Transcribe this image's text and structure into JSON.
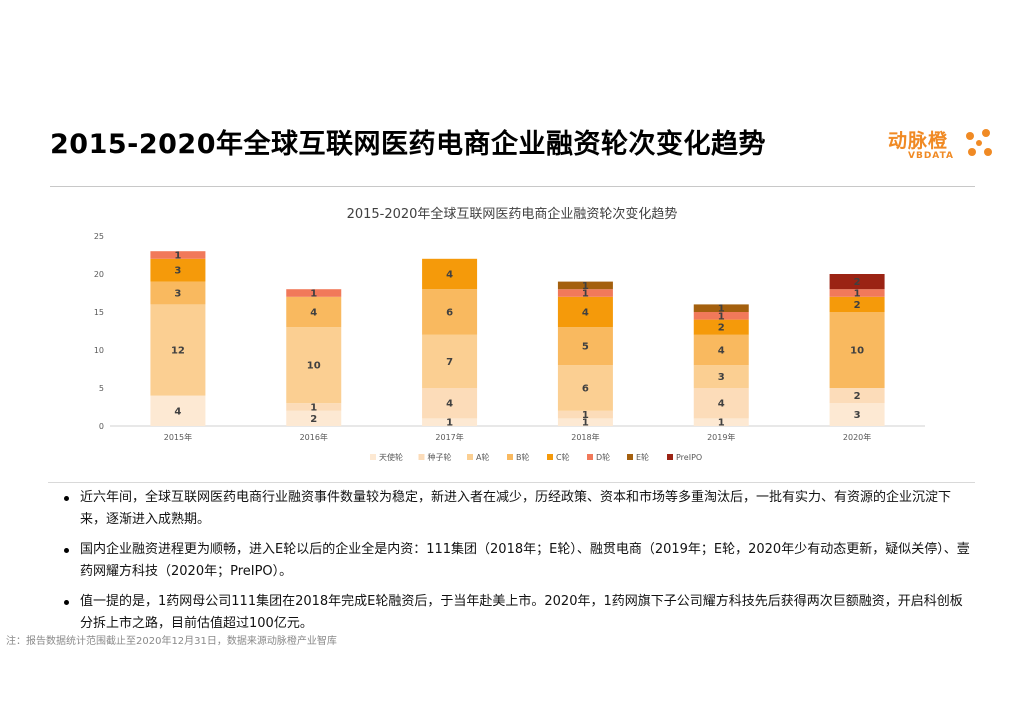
{
  "page": {
    "title": "2015-2020年全球互联网医药电商企业融资轮次变化趋势",
    "logo": {
      "name_cn": "动脉橙",
      "name_en": "VBDATA"
    },
    "bullets": [
      "近六年间，全球互联网医药电商行业融资事件数量较为稳定，新进入者在减少，历经政策、资本和市场等多重淘汰后，一批有实力、有资源的企业沉淀下来，逐渐进入成熟期。",
      "国内企业融资进程更为顺畅，进入E轮以后的企业全是内资：111集团（2018年；E轮）、融贯电商（2019年；E轮，2020年少有动态更新，疑似关停）、壹药网耀方科技（2020年；PreIPO）。",
      "值一提的是，1药网母公司111集团在2018年完成E轮融资后，于当年赴美上市。2020年，1药网旗下子公司耀方科技先后获得两次巨额融资，开启科创板分拆上市之路，目前估值超过100亿元。"
    ],
    "note": "注：报告数据统计范围截止至2020年12月31日，数据来源动脉橙产业智库"
  },
  "chart_data": {
    "type": "bar",
    "stacked": true,
    "title": "2015-2020年全球互联网医药电商企业融资轮次变化趋势",
    "categories": [
      "2015年",
      "2016年",
      "2017年",
      "2018年",
      "2019年",
      "2020年"
    ],
    "ylim": [
      0,
      25
    ],
    "yticks": [
      0,
      5,
      10,
      15,
      20,
      25
    ],
    "legend_position": "bottom",
    "series": [
      {
        "name": "天使轮",
        "color": "#fde9d3",
        "values": [
          4,
          2,
          1,
          1,
          1,
          3
        ]
      },
      {
        "name": "种子轮",
        "color": "#fcdcb9",
        "values": [
          0,
          1,
          4,
          1,
          4,
          2
        ]
      },
      {
        "name": "A轮",
        "color": "#fbcf92",
        "values": [
          12,
          10,
          7,
          6,
          3,
          0
        ]
      },
      {
        "name": "B轮",
        "color": "#f9b95f",
        "values": [
          3,
          4,
          6,
          5,
          4,
          10
        ]
      },
      {
        "name": "C轮",
        "color": "#f59a0a",
        "values": [
          3,
          0,
          4,
          4,
          2,
          2
        ]
      },
      {
        "name": "D轮",
        "color": "#f1795a",
        "values": [
          1,
          1,
          0,
          1,
          1,
          1
        ]
      },
      {
        "name": "E轮",
        "color": "#a4600e",
        "values": [
          0,
          0,
          0,
          1,
          1,
          0
        ]
      },
      {
        "name": "PreIPO",
        "color": "#9b2314",
        "values": [
          0,
          0,
          0,
          0,
          0,
          2
        ]
      }
    ]
  }
}
